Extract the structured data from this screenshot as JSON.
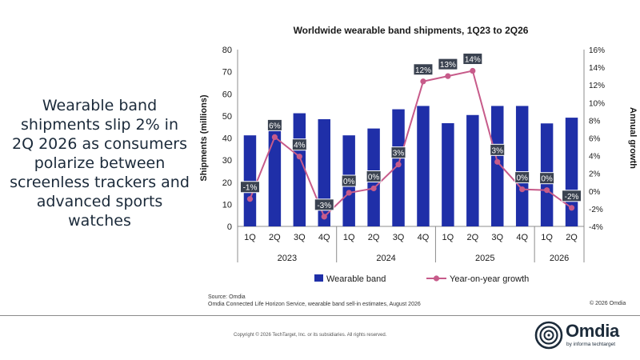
{
  "headline": "Wearable band shipments slip 2% in 2Q 2026 as consumers polarize between screenless trackers and advanced sports watches",
  "source_line1": "Source: Omdia",
  "source_line2": "Omdia Connected Life Horizon Service, wearable band sell-in estimates, August 2026",
  "copyright_right": "© 2026 Omdia",
  "footer_copyright": "Copyright © 2026 TechTarget, Inc. or its subsidiaries. All rights reserved.",
  "logo": {
    "word": "Omdia",
    "tagline": "by informa techtarget"
  },
  "colors": {
    "bar": "#1f2fa8",
    "line": "#c75b8a",
    "label_bg": "#3a4250",
    "headline": "#1b2a3a"
  },
  "chart_data": {
    "type": "bar",
    "title": "Worldwide wearable band shipments, 1Q23 to 2Q26",
    "categories": [
      "1Q",
      "2Q",
      "3Q",
      "4Q",
      "1Q",
      "2Q",
      "3Q",
      "4Q",
      "1Q",
      "2Q",
      "3Q",
      "4Q",
      "1Q",
      "2Q"
    ],
    "years": [
      {
        "label": "2023",
        "count": 4
      },
      {
        "label": "2024",
        "count": 4
      },
      {
        "label": "2025",
        "count": 4
      },
      {
        "label": "2026",
        "count": 2
      }
    ],
    "series": [
      {
        "name": "Wearable band",
        "type": "bar",
        "axis": "left",
        "values": [
          41.2,
          44.2,
          51.2,
          48.5,
          41.2,
          44.3,
          53.0,
          54.5,
          46.7,
          50.4,
          54.5,
          54.5,
          46.6,
          49.2
        ]
      },
      {
        "name": "Year-on-year growth",
        "type": "line",
        "axis": "right",
        "values": [
          -1,
          6,
          4,
          -3,
          0,
          0,
          3,
          12,
          13,
          14,
          3,
          0,
          0,
          -2
        ],
        "labels": [
          "-1%",
          "6%",
          "4%",
          "-3%",
          "0%",
          "0%",
          "3%",
          "12%",
          "13%",
          "14%",
          "3%",
          "0%",
          "0%",
          "-2%"
        ],
        "plot_values": [
          -0.9,
          6.1,
          3.9,
          -2.9,
          -0.2,
          0.3,
          3.0,
          12.4,
          13.0,
          13.6,
          3.3,
          0.2,
          0.1,
          -1.9
        ]
      }
    ],
    "ylabel": "Shipments (millions)",
    "y2label": "Annual growth",
    "ylim": [
      0,
      80
    ],
    "yticks": [
      "0",
      "10",
      "20",
      "30",
      "40",
      "50",
      "60",
      "70",
      "80"
    ],
    "y2lim": [
      -4,
      16
    ],
    "y2ticks": [
      "-4%",
      "-2%",
      "0%",
      "2%",
      "4%",
      "6%",
      "8%",
      "10%",
      "12%",
      "14%",
      "16%"
    ],
    "legend_position": "bottom",
    "grid": false
  }
}
